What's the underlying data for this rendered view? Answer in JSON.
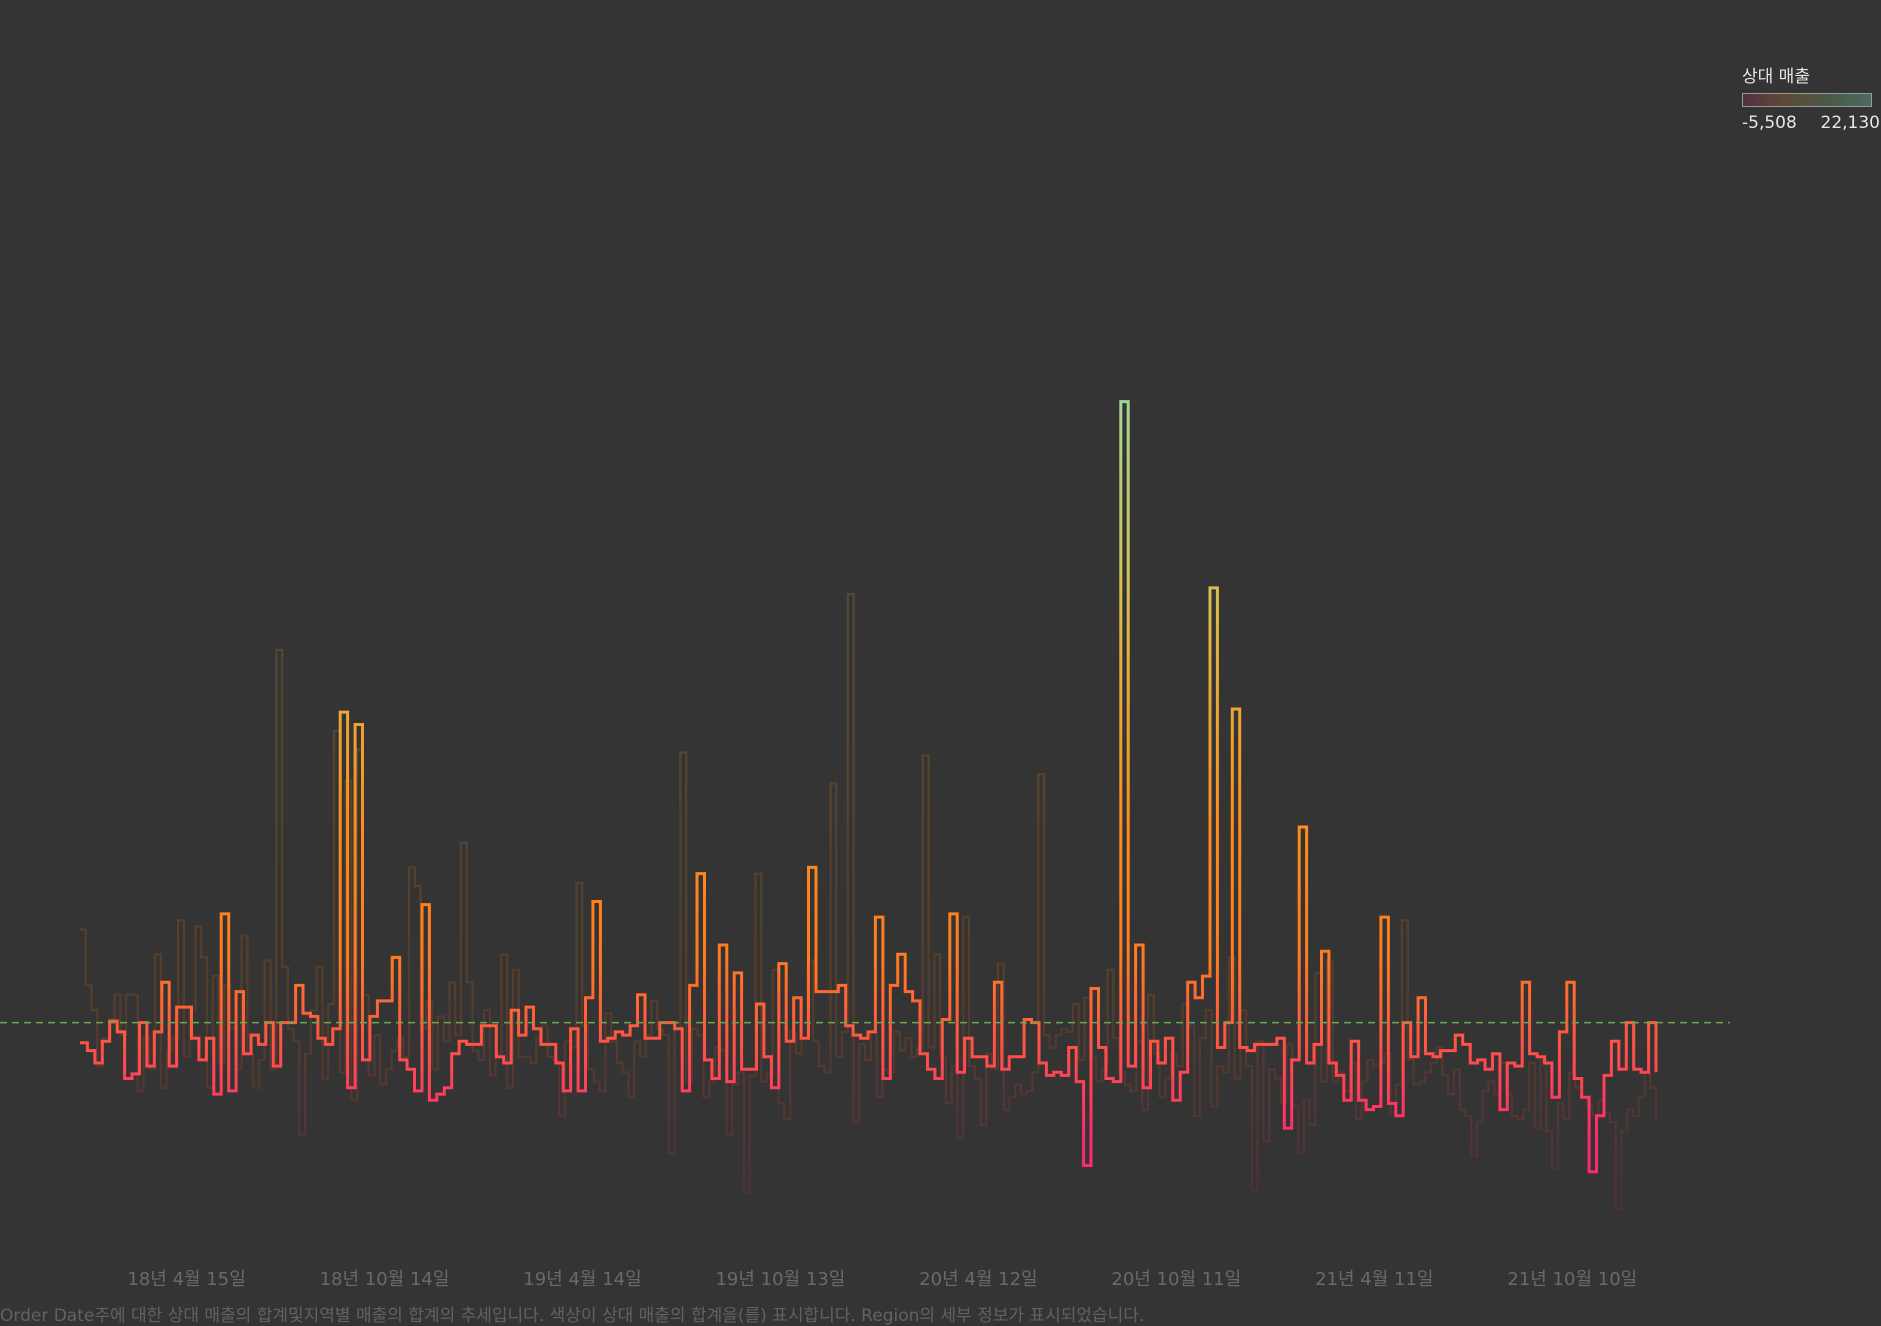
{
  "legend": {
    "title": "상대 매출",
    "min_label": "-5,508",
    "max_label": "22,130",
    "color_min": "#ff2a6e",
    "color_mid": "#ff8c1a",
    "color_max": "#8fe0b0"
  },
  "caption": "Order Date주에 대한 상대 매출의 합계및지역별 매출의 합계의 추세입니다. 색상이 상대 매출의 합계을(를) 표시합니다. Region의 세부 정보가 표시되었습니다.",
  "colors": {
    "background": "#343434",
    "reference_line": "#6aa84f",
    "ghost_series": "#5a4a30"
  },
  "chart_data": {
    "type": "line",
    "line_style": "step",
    "x_axis": {
      "type": "date",
      "unit": "week",
      "range": [
        "2018-01-07",
        "2021-12-26"
      ],
      "tick_labels": [
        "18년 4월 15일",
        "18년 10월 14일",
        "19년 4월 14일",
        "19년 10월 13일",
        "20년 4월 12일",
        "20년 10월 11일",
        "21년 4월 11일",
        "21년 10월 10일"
      ],
      "tick_dates": [
        "2018-04-15",
        "2018-10-14",
        "2019-04-14",
        "2019-10-13",
        "2020-04-12",
        "2020-10-11",
        "2021-04-11",
        "2021-10-10"
      ]
    },
    "ylim": [
      -7000,
      31000
    ],
    "grid": false,
    "reference_line": {
      "value": 0,
      "style": "dashed"
    },
    "color_scale": {
      "field": "상대 매출",
      "min": -5508,
      "max": 22130
    },
    "series": [
      {
        "role": "highlighted",
        "values": [
          -650,
          -900,
          -1300,
          -600,
          50,
          -300,
          -1800,
          -1650,
          0,
          -1400,
          -300,
          1300,
          -1400,
          500,
          500,
          -500,
          -1200,
          -500,
          -2300,
          3500,
          -2200,
          1000,
          -1000,
          -400,
          -700,
          0,
          -1400,
          0,
          0,
          1200,
          300,
          200,
          -500,
          -700,
          -200,
          10000,
          -2100,
          9600,
          -1200,
          200,
          700,
          700,
          2100,
          -1200,
          -1500,
          -2200,
          3800,
          -2500,
          -2300,
          -2100,
          -1000,
          -600,
          -700,
          -700,
          -100,
          -100,
          -1100,
          -1300,
          400,
          -400,
          500,
          -200,
          -700,
          -700,
          -1300,
          -2200,
          -200,
          -2200,
          800,
          3900,
          -600,
          -500,
          -300,
          -400,
          -100,
          900,
          -500,
          -500,
          0,
          0,
          -200,
          -2200,
          1200,
          4800,
          -1200,
          -1800,
          2500,
          -1900,
          1600,
          -1500,
          -1500,
          600,
          -1100,
          -2100,
          1900,
          -600,
          800,
          -500,
          5000,
          1000,
          1000,
          1000,
          1200,
          -100,
          -400,
          -500,
          -300,
          3400,
          -1800,
          1200,
          2200,
          1000,
          700,
          -1000,
          -1500,
          -1800,
          100,
          3500,
          -1600,
          -500,
          -1100,
          -1100,
          -1400,
          1300,
          -1500,
          -1100,
          -1100,
          100,
          0,
          -1300,
          -1700,
          -1600,
          -1700,
          -800,
          -1900,
          -4600,
          1100,
          -800,
          -1800,
          -1900,
          20000,
          -1400,
          2500,
          -2100,
          -600,
          -1300,
          -500,
          -2500,
          -1600,
          1300,
          800,
          1500,
          14000,
          -800,
          0,
          10100,
          -800,
          -900,
          -700,
          -700,
          -700,
          -500,
          -3400,
          -1200,
          6300,
          -1300,
          -700,
          2300,
          -1300,
          -1700,
          -2500,
          -600,
          -2500,
          -2800,
          -2700,
          3400,
          -2600,
          -3000,
          0,
          -1100,
          800,
          -1000,
          -1100,
          -900,
          -900,
          -400,
          -700,
          -1300,
          -1200,
          -1500,
          -1000,
          -2800,
          -1300,
          -1400,
          1300,
          -1000,
          -1100,
          -1300,
          -2400,
          -300,
          1300,
          -1800,
          -2400,
          -4800,
          -3000,
          -1700,
          -600,
          -1500,
          0,
          -1500,
          -1600,
          0,
          -1600
        ]
      },
      {
        "role": "background",
        "values": [
          3000,
          1200,
          400,
          -1400,
          -500,
          100,
          900,
          -400,
          900,
          900,
          -2200,
          -500,
          -1500,
          2200,
          -2100,
          -900,
          -500,
          3300,
          -1100,
          400,
          3100,
          2100,
          -2100,
          1500,
          -1300,
          1200,
          -200,
          -1500,
          2800,
          -1000,
          -2100,
          -1200,
          2000,
          -1500,
          12000,
          1800,
          -200,
          -600,
          -3600,
          -1000,
          400,
          1800,
          -1800,
          600,
          9400,
          -1600,
          7800,
          -2500,
          8800,
          900,
          -1700,
          -400,
          -2000,
          -1500,
          -900,
          -500,
          -1100,
          5000,
          4400,
          -200,
          700,
          -1500,
          200,
          -600,
          1300,
          -400,
          5800,
          1300,
          -900,
          -1200,
          400,
          -1700,
          -1000,
          2200,
          -2100,
          1700,
          -1100,
          -1100,
          -1300,
          -500,
          -100,
          -1100,
          -1200,
          -3000,
          -600,
          -800,
          4500,
          -100,
          -1500,
          -1900,
          -2200,
          300,
          -600,
          -1300,
          -1600,
          -2400,
          -600,
          -1100,
          -400,
          700,
          -200,
          -400,
          -4200,
          -200,
          8700,
          -1900,
          -200,
          -400,
          -2400,
          -1900,
          -800,
          -900,
          -3600,
          -2000,
          -1600,
          -5500,
          -1700,
          4800,
          -1900,
          -1600,
          1700,
          -2600,
          -3100,
          -300,
          -1000,
          -500,
          2000,
          -600,
          -1400,
          -1600,
          7700,
          -1100,
          -300,
          13800,
          -3200,
          -700,
          -1200,
          -300,
          -2400,
          -1500,
          -1600,
          -300,
          -900,
          -500,
          -1100,
          -800,
          8600,
          -800,
          2200,
          -1100,
          -2600,
          -1400,
          -3700,
          3400,
          -1400,
          -1800,
          -3300,
          -1000,
          -1500,
          1900,
          -2800,
          -2400,
          -2000,
          -2300,
          -2200,
          -1600,
          8000,
          -400,
          -800,
          -400,
          -200,
          -300,
          600,
          -1200,
          800,
          -1100,
          -1900,
          -1500,
          1700,
          -500,
          -1600,
          -2000,
          -2200,
          -600,
          -2800,
          900,
          -1000,
          -2400,
          -1800,
          -1000,
          -1400,
          600,
          -100,
          -3000,
          -500,
          400,
          -2700,
          -1400,
          -1600,
          2100,
          -1800,
          400,
          -1400,
          -5400,
          -600,
          -3800,
          -1500,
          -1800,
          -2600,
          -700,
          -2700,
          -4200,
          -2500,
          -3300,
          1600,
          -1900,
          2000,
          -1900,
          -1600,
          -2200,
          -1300,
          -3100,
          -1900,
          -1200,
          -1400,
          -1300,
          -1000,
          -2900,
          -2000,
          3300,
          -1200,
          -2000,
          -1900,
          -1600,
          -1300,
          -800,
          -1700,
          -2300,
          -1500,
          -2800,
          -3000,
          -4300,
          -3200,
          -2200,
          -1900,
          -2300,
          -1300,
          -2300,
          -3000,
          -3100,
          -2800,
          -1300,
          -3400,
          -1200,
          -3500,
          -4700,
          -2600,
          -3100,
          -1600,
          -2100,
          -2400,
          -2700,
          -3000,
          -2500,
          -2900,
          -3200,
          -6000,
          -3500,
          -2800,
          -3000,
          -2400,
          -1600,
          -2100,
          -3200
        ]
      }
    ]
  }
}
